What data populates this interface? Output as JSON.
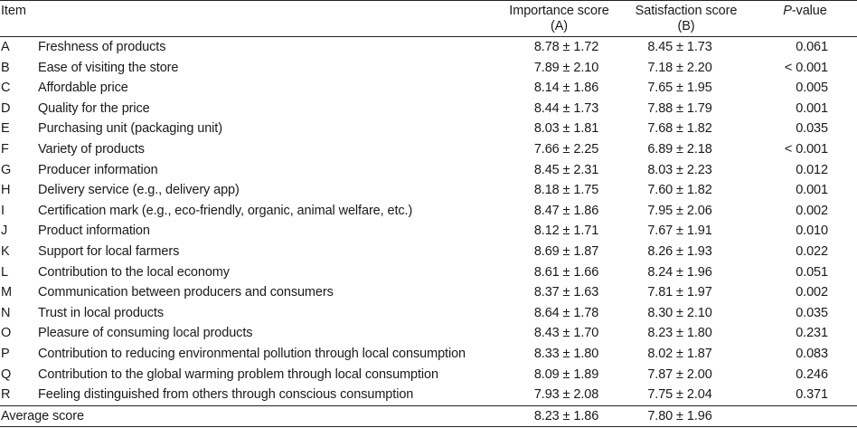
{
  "table": {
    "headers": {
      "item": "Item",
      "importance_line1": "Importance score",
      "importance_line2": "(A)",
      "satisfaction_line1": "Satisfaction score",
      "satisfaction_line2": "(B)",
      "p_italic": "P",
      "p_rest": "-value"
    },
    "rows": [
      {
        "letter": "A",
        "label": "Freshness of products",
        "importance": "8.78 ± 1.72",
        "satisfaction": "8.45 ± 1.73",
        "p": "0.061"
      },
      {
        "letter": "B",
        "label": "Ease of visiting the store",
        "importance": "7.89 ± 2.10",
        "satisfaction": "7.18 ± 2.20",
        "p": "< 0.001"
      },
      {
        "letter": "C",
        "label": "Affordable price",
        "importance": "8.14 ± 1.86",
        "satisfaction": "7.65 ± 1.95",
        "p": "0.005"
      },
      {
        "letter": "D",
        "label": "Quality for the price",
        "importance": "8.44 ± 1.73",
        "satisfaction": "7.88 ± 1.79",
        "p": "0.001"
      },
      {
        "letter": "E",
        "label": "Purchasing unit (packaging unit)",
        "importance": "8.03 ± 1.81",
        "satisfaction": "7.68 ± 1.82",
        "p": "0.035"
      },
      {
        "letter": "F",
        "label": "Variety of products",
        "importance": "7.66 ± 2.25",
        "satisfaction": "6.89 ± 2.18",
        "p": "< 0.001"
      },
      {
        "letter": "G",
        "label": "Producer information",
        "importance": "8.45 ± 2.31",
        "satisfaction": "8.03 ± 2.23",
        "p": "0.012"
      },
      {
        "letter": "H",
        "label": "Delivery service (e.g., delivery app)",
        "importance": "8.18 ± 1.75",
        "satisfaction": "7.60 ± 1.82",
        "p": "0.001"
      },
      {
        "letter": "I",
        "label": "Certification mark (e.g., eco-friendly, organic, animal welfare, etc.)",
        "importance": "8.47 ± 1.86",
        "satisfaction": "7.95 ± 2.06",
        "p": "0.002"
      },
      {
        "letter": "J",
        "label": "Product information",
        "importance": "8.12 ± 1.71",
        "satisfaction": "7.67 ± 1.91",
        "p": "0.010"
      },
      {
        "letter": "K",
        "label": "Support for local farmers",
        "importance": "8.69 ± 1.87",
        "satisfaction": "8.26 ± 1.93",
        "p": "0.022"
      },
      {
        "letter": "L",
        "label": "Contribution to the local economy",
        "importance": "8.61 ± 1.66",
        "satisfaction": "8.24 ± 1.96",
        "p": "0.051"
      },
      {
        "letter": "M",
        "label": "Communication between producers and consumers",
        "importance": "8.37 ± 1.63",
        "satisfaction": "7.81 ± 1.97",
        "p": "0.002"
      },
      {
        "letter": "N",
        "label": "Trust in local products",
        "importance": "8.64 ± 1.78",
        "satisfaction": "8.30 ± 2.10",
        "p": "0.035"
      },
      {
        "letter": "O",
        "label": "Pleasure of consuming local products",
        "importance": "8.43 ± 1.70",
        "satisfaction": "8.23 ± 1.80",
        "p": "0.231"
      },
      {
        "letter": "P",
        "label": "Contribution to reducing environmental pollution through local consumption",
        "importance": "8.33 ± 1.80",
        "satisfaction": "8.02 ± 1.87",
        "p": "0.083"
      },
      {
        "letter": "Q",
        "label": "Contribution to the global warming problem through local consumption",
        "importance": "8.09 ± 1.89",
        "satisfaction": "7.87 ± 2.00",
        "p": "0.246"
      },
      {
        "letter": "R",
        "label": "Feeling distinguished from others through conscious consumption",
        "importance": "7.93 ± 2.08",
        "satisfaction": "7.75 ± 2.04",
        "p": "0.371"
      }
    ],
    "footer": {
      "label": "Average score",
      "importance": "8.23 ± 1.86",
      "satisfaction": "7.80 ± 1.96"
    }
  }
}
